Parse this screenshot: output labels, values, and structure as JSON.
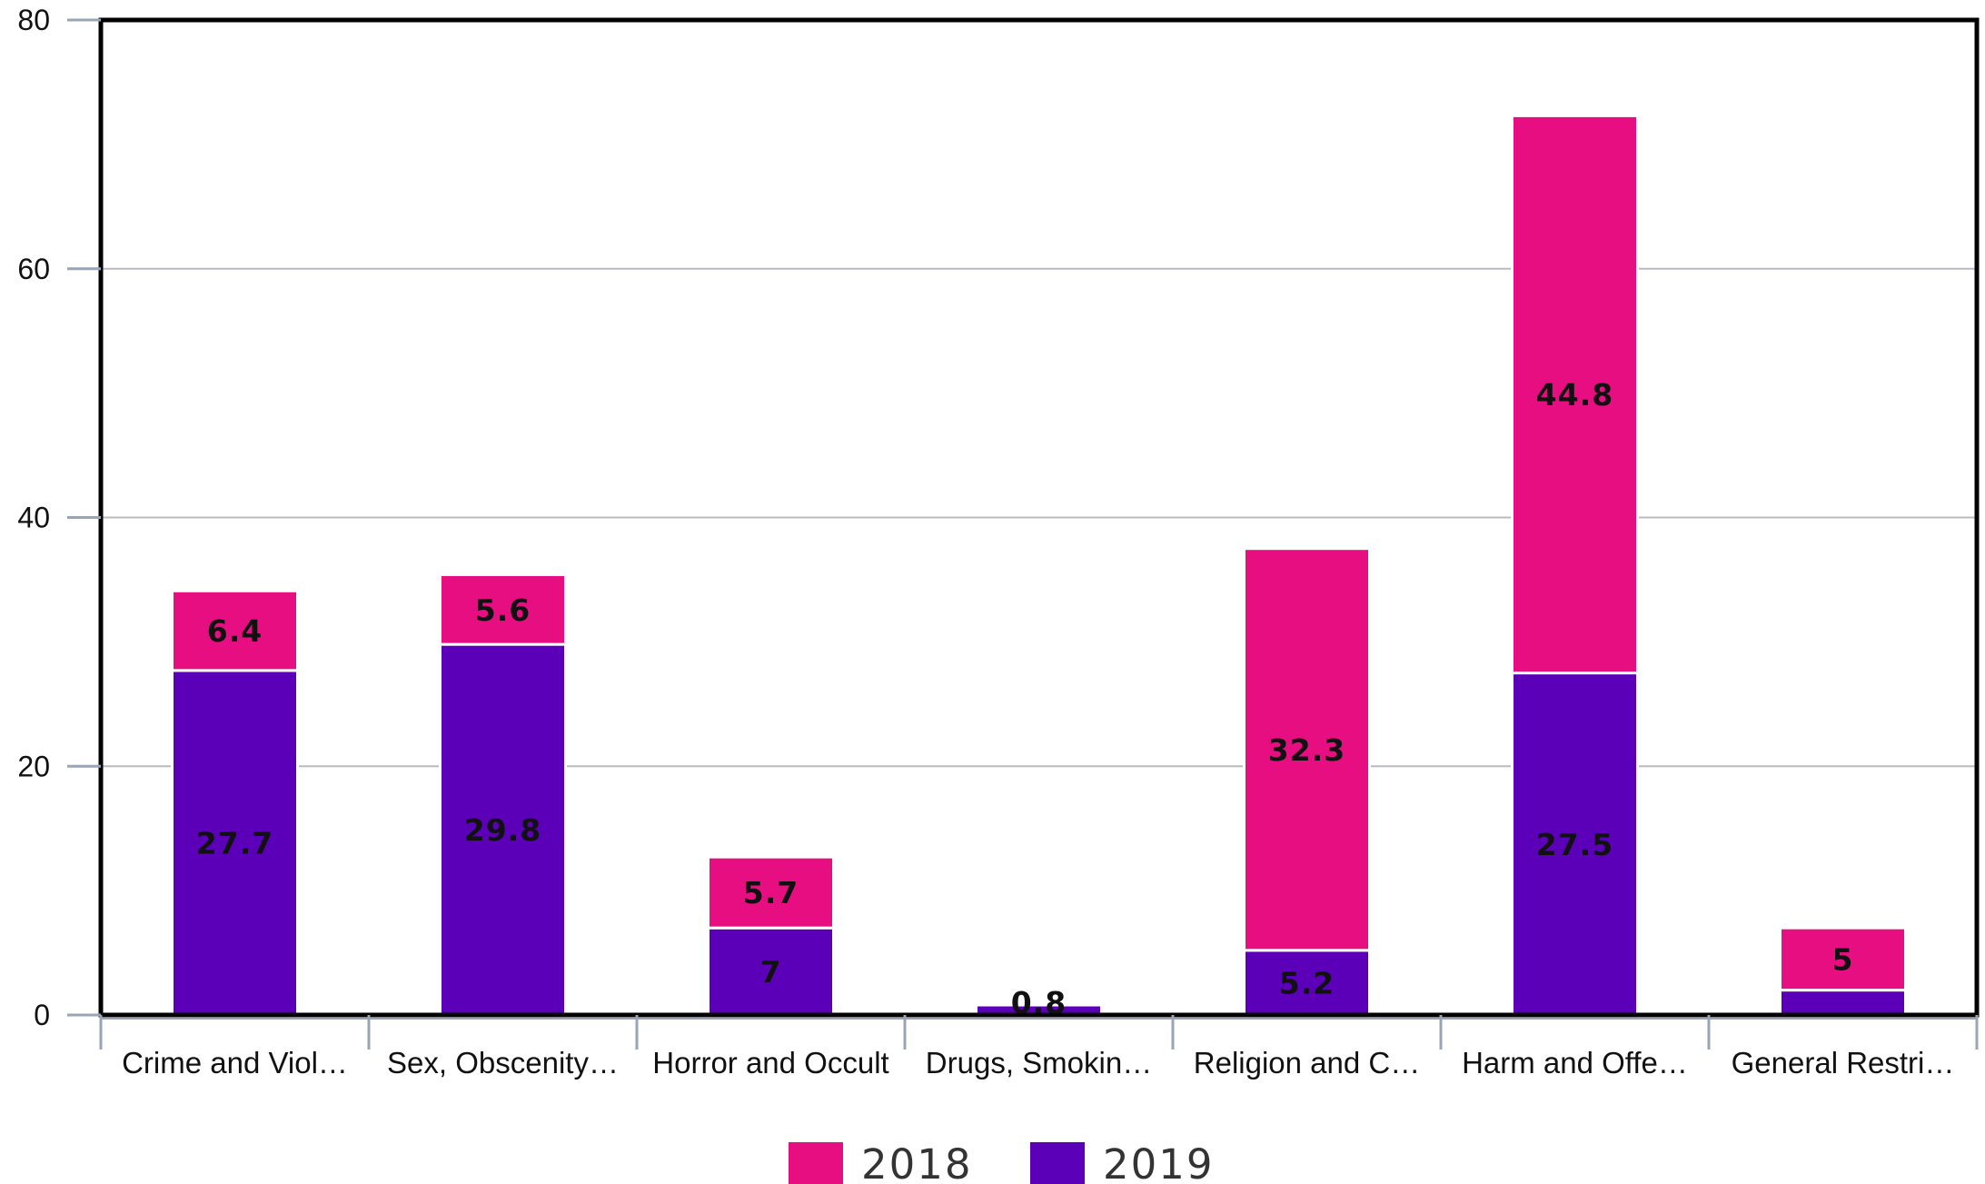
{
  "chart_data": {
    "type": "bar",
    "stacked": true,
    "categories": [
      "Crime and Viol…",
      "Sex, Obscenity…",
      "Horror and Occult",
      "Drugs, Smokin…",
      "Religion and C…",
      "Harm and Offe…",
      "General Restri…"
    ],
    "series": [
      {
        "name": "2019",
        "color": "#5b00b8",
        "values": [
          27.7,
          29.8,
          7,
          0.8,
          5.2,
          27.5,
          2
        ],
        "labels": [
          "27.7",
          "29.8",
          "7",
          "0.8",
          "5.2",
          "27.5",
          ""
        ]
      },
      {
        "name": "2018",
        "color": "#e60e80",
        "values": [
          6.4,
          5.6,
          5.7,
          0,
          32.3,
          44.8,
          5
        ],
        "labels": [
          "6.4",
          "5.6",
          "5.7",
          "",
          "32.3",
          "44.8",
          "5"
        ]
      }
    ],
    "ylim": [
      0,
      80
    ],
    "yticks": [
      0,
      20,
      40,
      60,
      80
    ],
    "grid": true,
    "legend": "bottom-center",
    "legend_order": [
      "2018",
      "2019"
    ],
    "title": "",
    "xlabel": "",
    "ylabel": ""
  }
}
